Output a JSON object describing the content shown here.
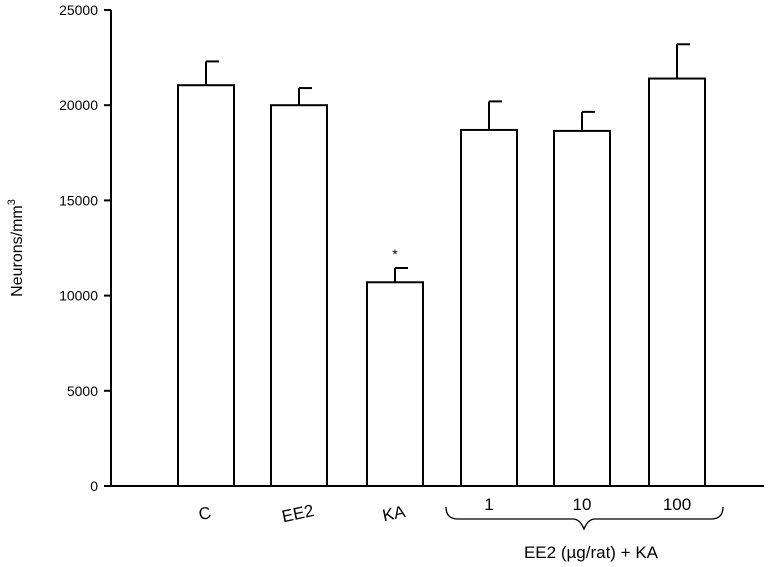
{
  "chart_data": {
    "type": "bar",
    "categories": [
      "C",
      "EE2",
      "KA",
      "1",
      "10",
      "100"
    ],
    "values": [
      21050,
      20000,
      10700,
      18700,
      18650,
      21400
    ],
    "errors": [
      1250,
      900,
      750,
      1500,
      1000,
      1800
    ],
    "significance": [
      "",
      "",
      "*",
      "",
      "",
      ""
    ],
    "ylabel": "Neurons/mm",
    "ylabel_superscript": "3",
    "ylim": [
      0,
      25000
    ],
    "yticks": [
      "0",
      "5000",
      "10000",
      "15000",
      "20000",
      "25000"
    ],
    "group_label": "EE2  (µg/rat) + KA",
    "grid": false,
    "bar_color": "#ffffff",
    "edge_color": "#000000"
  }
}
